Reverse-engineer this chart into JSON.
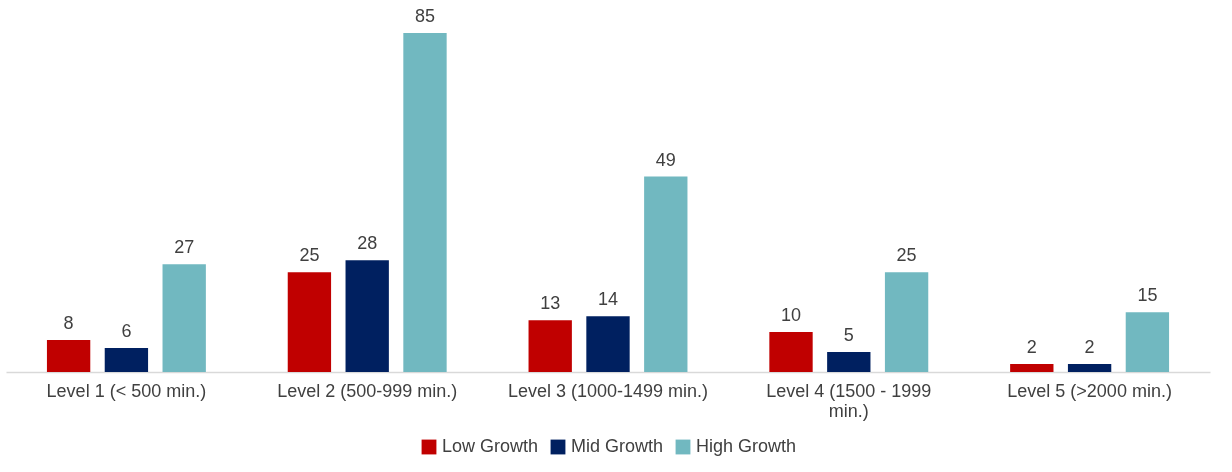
{
  "chart_data": {
    "type": "bar",
    "categories": [
      "Level 1 (< 500 min.)",
      "Level 2 (500-999 min.)",
      "Level 3 (1000-1499 min.)",
      "Level 4 (1500 - 1999 min.)",
      "Level 5 (>2000 min.)"
    ],
    "series": [
      {
        "name": "Low Growth",
        "color": "#c00000",
        "values": [
          8,
          25,
          13,
          10,
          2
        ]
      },
      {
        "name": "Mid Growth",
        "color": "#002060",
        "values": [
          6,
          28,
          14,
          5,
          2
        ]
      },
      {
        "name": "High Growth",
        "color": "#71b8c0",
        "values": [
          27,
          85,
          49,
          25,
          15
        ]
      }
    ],
    "data_labels": true,
    "legend": "bottom",
    "grid": false
  }
}
